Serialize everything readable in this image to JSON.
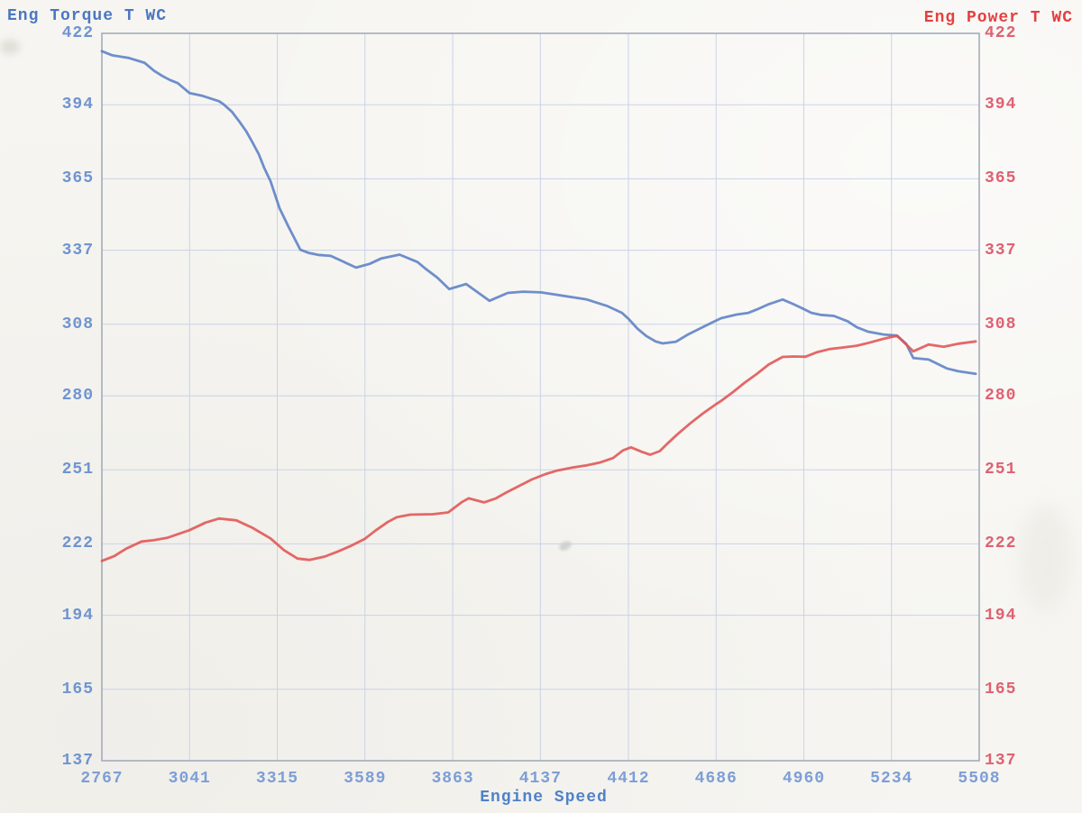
{
  "chart_data": {
    "type": "line",
    "title_left": "Eng Torque T WC",
    "title_right": "Eng Power T WC",
    "xlabel": "Engine Speed",
    "x_range": [
      2767,
      5508
    ],
    "y_range": [
      137,
      422
    ],
    "x_ticks": [
      2767,
      3041,
      3315,
      3589,
      3863,
      4137,
      4412,
      4686,
      4960,
      5234,
      5508
    ],
    "y_ticks_left": [
      422,
      394,
      365,
      337,
      308,
      280,
      251,
      222,
      194,
      165,
      137
    ],
    "y_ticks_right": [
      422,
      394,
      365,
      337,
      308,
      280,
      251,
      222,
      194,
      165,
      137
    ],
    "grid": true,
    "legend": "none",
    "series": [
      {
        "name": "Eng Torque",
        "axis": "left",
        "color": "#5b7fc5",
        "points": [
          [
            2767,
            415.0
          ],
          [
            2800,
            413.4
          ],
          [
            2850,
            412.4
          ],
          [
            2900,
            410.5
          ],
          [
            2930,
            407.3
          ],
          [
            2956,
            405.3
          ],
          [
            2980,
            403.7
          ],
          [
            3004,
            402.5
          ],
          [
            3041,
            398.6
          ],
          [
            3082,
            397.5
          ],
          [
            3133,
            395.4
          ],
          [
            3147,
            394.2
          ],
          [
            3173,
            391.3
          ],
          [
            3195,
            387.7
          ],
          [
            3218,
            383.6
          ],
          [
            3237,
            379.4
          ],
          [
            3257,
            374.7
          ],
          [
            3274,
            369.3
          ],
          [
            3294,
            364.0
          ],
          [
            3322,
            353.5
          ],
          [
            3350,
            346.2
          ],
          [
            3387,
            337.2
          ],
          [
            3415,
            335.9
          ],
          [
            3443,
            335.2
          ],
          [
            3482,
            334.8
          ],
          [
            3519,
            332.7
          ],
          [
            3561,
            330.2
          ],
          [
            3604,
            331.7
          ],
          [
            3640,
            333.8
          ],
          [
            3697,
            335.3
          ],
          [
            3753,
            332.4
          ],
          [
            3781,
            329.5
          ],
          [
            3815,
            326.3
          ],
          [
            3852,
            321.8
          ],
          [
            3905,
            323.8
          ],
          [
            3978,
            317.2
          ],
          [
            4035,
            320.3
          ],
          [
            4083,
            320.8
          ],
          [
            4139,
            320.5
          ],
          [
            4187,
            319.6
          ],
          [
            4280,
            317.8
          ],
          [
            4345,
            315.2
          ],
          [
            4392,
            312.5
          ],
          [
            4412,
            310.2
          ],
          [
            4440,
            306.3
          ],
          [
            4468,
            303.4
          ],
          [
            4497,
            301.3
          ],
          [
            4519,
            300.5
          ],
          [
            4561,
            301.2
          ],
          [
            4598,
            304.0
          ],
          [
            4637,
            306.4
          ],
          [
            4674,
            308.7
          ],
          [
            4702,
            310.4
          ],
          [
            4750,
            311.8
          ],
          [
            4787,
            312.5
          ],
          [
            4815,
            313.9
          ],
          [
            4851,
            315.9
          ],
          [
            4894,
            317.7
          ],
          [
            4927,
            315.9
          ],
          [
            4956,
            314.2
          ],
          [
            4984,
            312.5
          ],
          [
            5012,
            311.7
          ],
          [
            5054,
            311.3
          ],
          [
            5097,
            309.2
          ],
          [
            5125,
            306.9
          ],
          [
            5161,
            305.1
          ],
          [
            5209,
            304.0
          ],
          [
            5251,
            303.6
          ],
          [
            5280,
            300.3
          ],
          [
            5302,
            294.8
          ],
          [
            5350,
            294.2
          ],
          [
            5407,
            290.7
          ],
          [
            5443,
            289.6
          ],
          [
            5497,
            288.6
          ]
        ]
      },
      {
        "name": "Eng Power",
        "axis": "right",
        "color": "#e05353",
        "points": [
          [
            2767,
            215.3
          ],
          [
            2806,
            217.2
          ],
          [
            2843,
            220.1
          ],
          [
            2891,
            222.9
          ],
          [
            2928,
            223.4
          ],
          [
            2970,
            224.3
          ],
          [
            3040,
            227.3
          ],
          [
            3091,
            230.3
          ],
          [
            3133,
            231.9
          ],
          [
            3187,
            231.2
          ],
          [
            3237,
            228.3
          ],
          [
            3294,
            224.1
          ],
          [
            3336,
            219.5
          ],
          [
            3378,
            216.2
          ],
          [
            3415,
            215.7
          ],
          [
            3463,
            217.0
          ],
          [
            3505,
            219.0
          ],
          [
            3547,
            221.3
          ],
          [
            3589,
            224.0
          ],
          [
            3623,
            227.3
          ],
          [
            3660,
            230.5
          ],
          [
            3688,
            232.4
          ],
          [
            3730,
            233.4
          ],
          [
            3801,
            233.6
          ],
          [
            3849,
            234.3
          ],
          [
            3891,
            238.3
          ],
          [
            3913,
            239.8
          ],
          [
            3961,
            238.2
          ],
          [
            3998,
            239.8
          ],
          [
            4026,
            241.8
          ],
          [
            4068,
            244.5
          ],
          [
            4110,
            247.2
          ],
          [
            4153,
            249.3
          ],
          [
            4187,
            250.6
          ],
          [
            4237,
            251.9
          ],
          [
            4280,
            252.7
          ],
          [
            4322,
            253.8
          ],
          [
            4364,
            255.6
          ],
          [
            4395,
            258.6
          ],
          [
            4420,
            259.8
          ],
          [
            4455,
            258.0
          ],
          [
            4480,
            256.9
          ],
          [
            4510,
            258.3
          ],
          [
            4535,
            261.4
          ],
          [
            4565,
            264.9
          ],
          [
            4605,
            269.2
          ],
          [
            4645,
            273.1
          ],
          [
            4686,
            276.7
          ],
          [
            4705,
            278.3
          ],
          [
            4740,
            281.6
          ],
          [
            4775,
            285.1
          ],
          [
            4815,
            288.7
          ],
          [
            4850,
            292.2
          ],
          [
            4894,
            295.2
          ],
          [
            4930,
            295.4
          ],
          [
            4965,
            295.3
          ],
          [
            5000,
            297.0
          ],
          [
            5040,
            298.3
          ],
          [
            5080,
            298.9
          ],
          [
            5125,
            299.6
          ],
          [
            5165,
            300.8
          ],
          [
            5209,
            302.3
          ],
          [
            5251,
            303.5
          ],
          [
            5285,
            299.5
          ],
          [
            5302,
            297.4
          ],
          [
            5350,
            300.1
          ],
          [
            5397,
            299.2
          ],
          [
            5444,
            300.4
          ],
          [
            5497,
            301.3
          ]
        ]
      }
    ],
    "colors": {
      "background": "#f6f5f1",
      "grid": "#c5cfe6",
      "border": "#a5abba",
      "torque_line": "#5b7fc5",
      "power_line": "#e05353",
      "left_title": "#4b77c0",
      "left_ticks": "#6f94d0",
      "bottom_ticks": "#7d9ed6",
      "xlabel_color": "#4e82c8",
      "right_title": "#e44040",
      "right_ticks": "#de6272"
    }
  }
}
